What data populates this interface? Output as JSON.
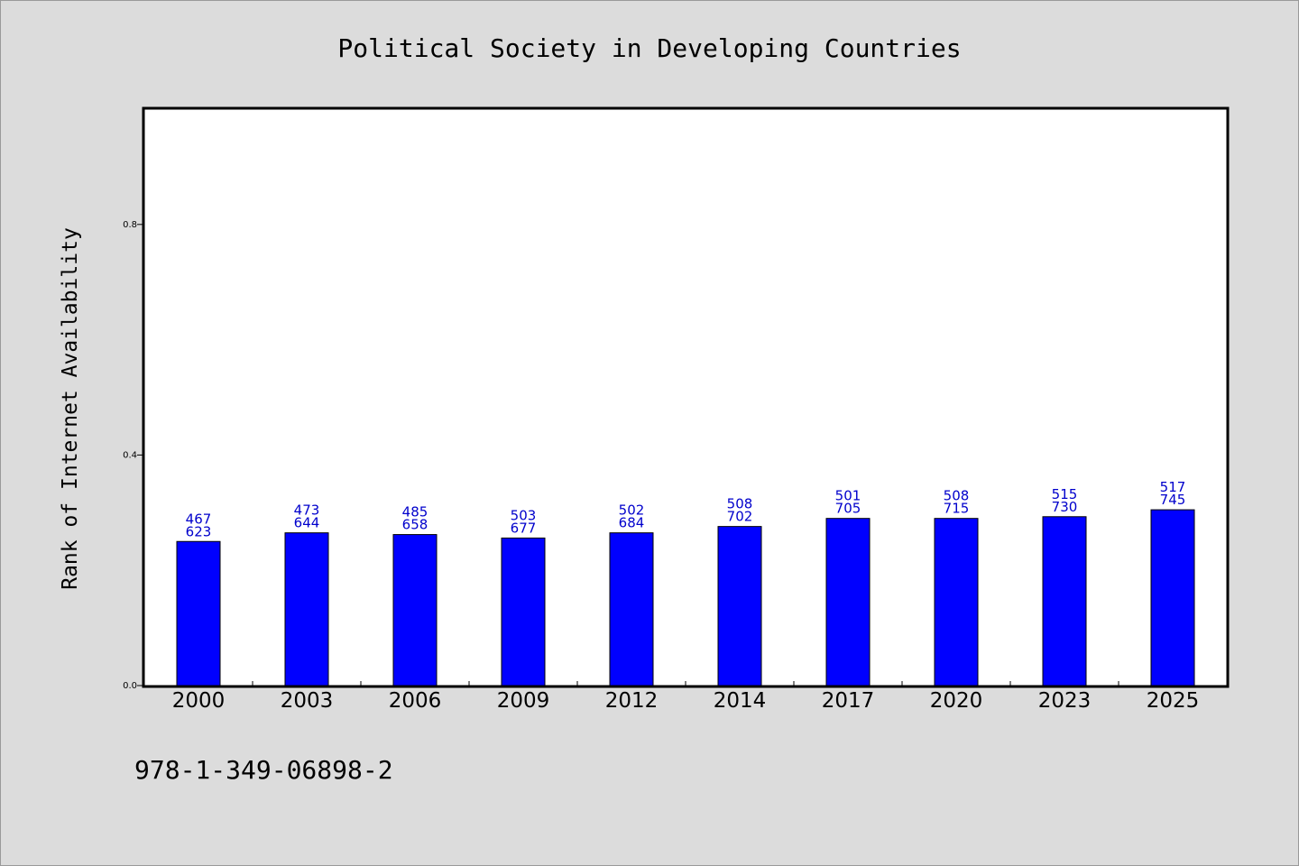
{
  "chart_data": {
    "type": "bar",
    "title": "Political Society in Developing Countries",
    "xlabel": "",
    "ylabel": "Rank of Internet Availability",
    "ylim": [
      0,
      1.0
    ],
    "yticks": [
      0.0,
      0.4,
      0.8
    ],
    "ytick_labels": [
      "0.0",
      "0.4",
      "0.8"
    ],
    "grid": false,
    "legend": "none",
    "categories": [
      "2000",
      "2003",
      "2006",
      "2009",
      "2012",
      "2014",
      "2017",
      "2020",
      "2023",
      "2025"
    ],
    "values": [
      0.25,
      0.265,
      0.262,
      0.256,
      0.265,
      0.276,
      0.29,
      0.29,
      0.293,
      0.305
    ],
    "labels_top": [
      "467",
      "473",
      "485",
      "503",
      "502",
      "508",
      "501",
      "508",
      "515",
      "517"
    ],
    "labels_bottom": [
      "623",
      "644",
      "658",
      "677",
      "684",
      "702",
      "705",
      "715",
      "730",
      "745"
    ],
    "bar_color": "#0000ff",
    "label_color": "#0000cc",
    "footer": "978-1-349-06898-2"
  }
}
